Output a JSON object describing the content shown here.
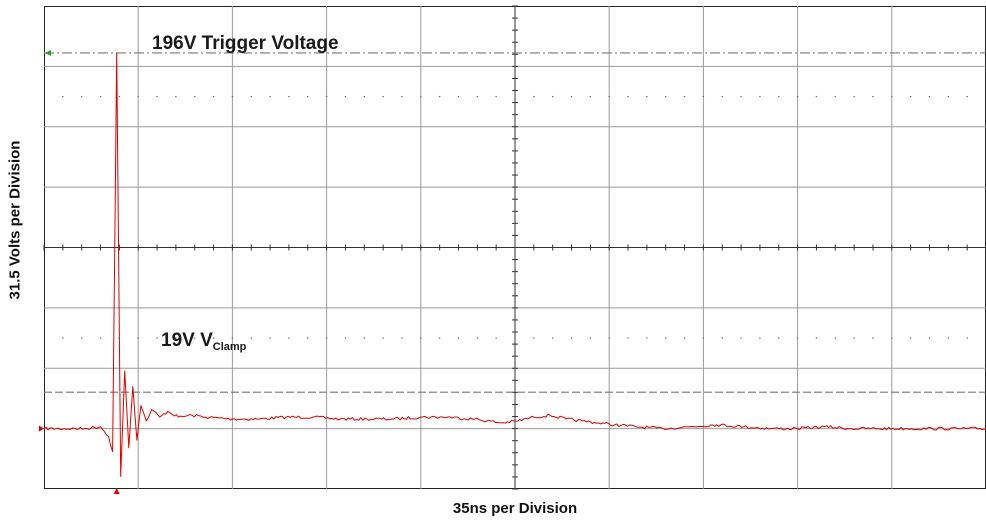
{
  "chart_data": {
    "type": "line",
    "title": "",
    "xlabel": "35ns per Division",
    "ylabel": "31.5 Volts per Division",
    "x_divisions": 10,
    "y_divisions": 8,
    "x_unit": "ns",
    "y_unit": "V",
    "ns_per_division": 35,
    "volts_per_division": 31.5,
    "xlim": [
      0,
      350
    ],
    "ylim": [
      -31.5,
      220.5
    ],
    "grid": true,
    "annotations": [
      {
        "id": "trigger",
        "text": "196V Trigger Voltage",
        "y": 196
      },
      {
        "id": "clamp",
        "text_main": "19V V",
        "text_sub": "Clamp",
        "y": 19
      }
    ],
    "reference_lines": [
      {
        "name": "trigger",
        "y": 196,
        "style": "dash-dot",
        "color": "#777777"
      },
      {
        "name": "clamp",
        "y": 19,
        "style": "dashed",
        "color": "#777777"
      }
    ],
    "series": [
      {
        "color": "#e00000",
        "baseline_y": 0,
        "x": [
          0,
          15,
          21,
          24,
          25.5,
          27,
          28.5,
          30,
          31.5,
          33,
          34.5,
          36,
          38,
          40,
          43,
          46,
          50,
          55,
          60,
          70,
          80,
          90,
          100,
          110,
          120,
          130,
          140,
          150,
          160,
          170,
          176,
          182,
          188,
          194,
          200,
          206,
          212,
          220,
          230,
          240,
          250,
          260,
          270,
          280,
          290,
          300,
          310,
          320,
          330,
          340,
          350
        ],
        "y": [
          0,
          0,
          1,
          -4,
          -12,
          196,
          -25,
          30,
          -10,
          22,
          -6,
          12,
          4,
          10,
          6,
          9,
          6,
          7,
          6,
          5,
          5,
          6,
          6,
          5,
          5,
          5,
          6,
          6,
          5,
          3,
          4,
          6,
          7,
          5,
          4,
          3,
          2,
          1,
          0,
          1,
          2,
          1,
          0,
          0,
          1,
          0,
          0,
          0,
          0,
          0,
          0
        ]
      }
    ]
  }
}
